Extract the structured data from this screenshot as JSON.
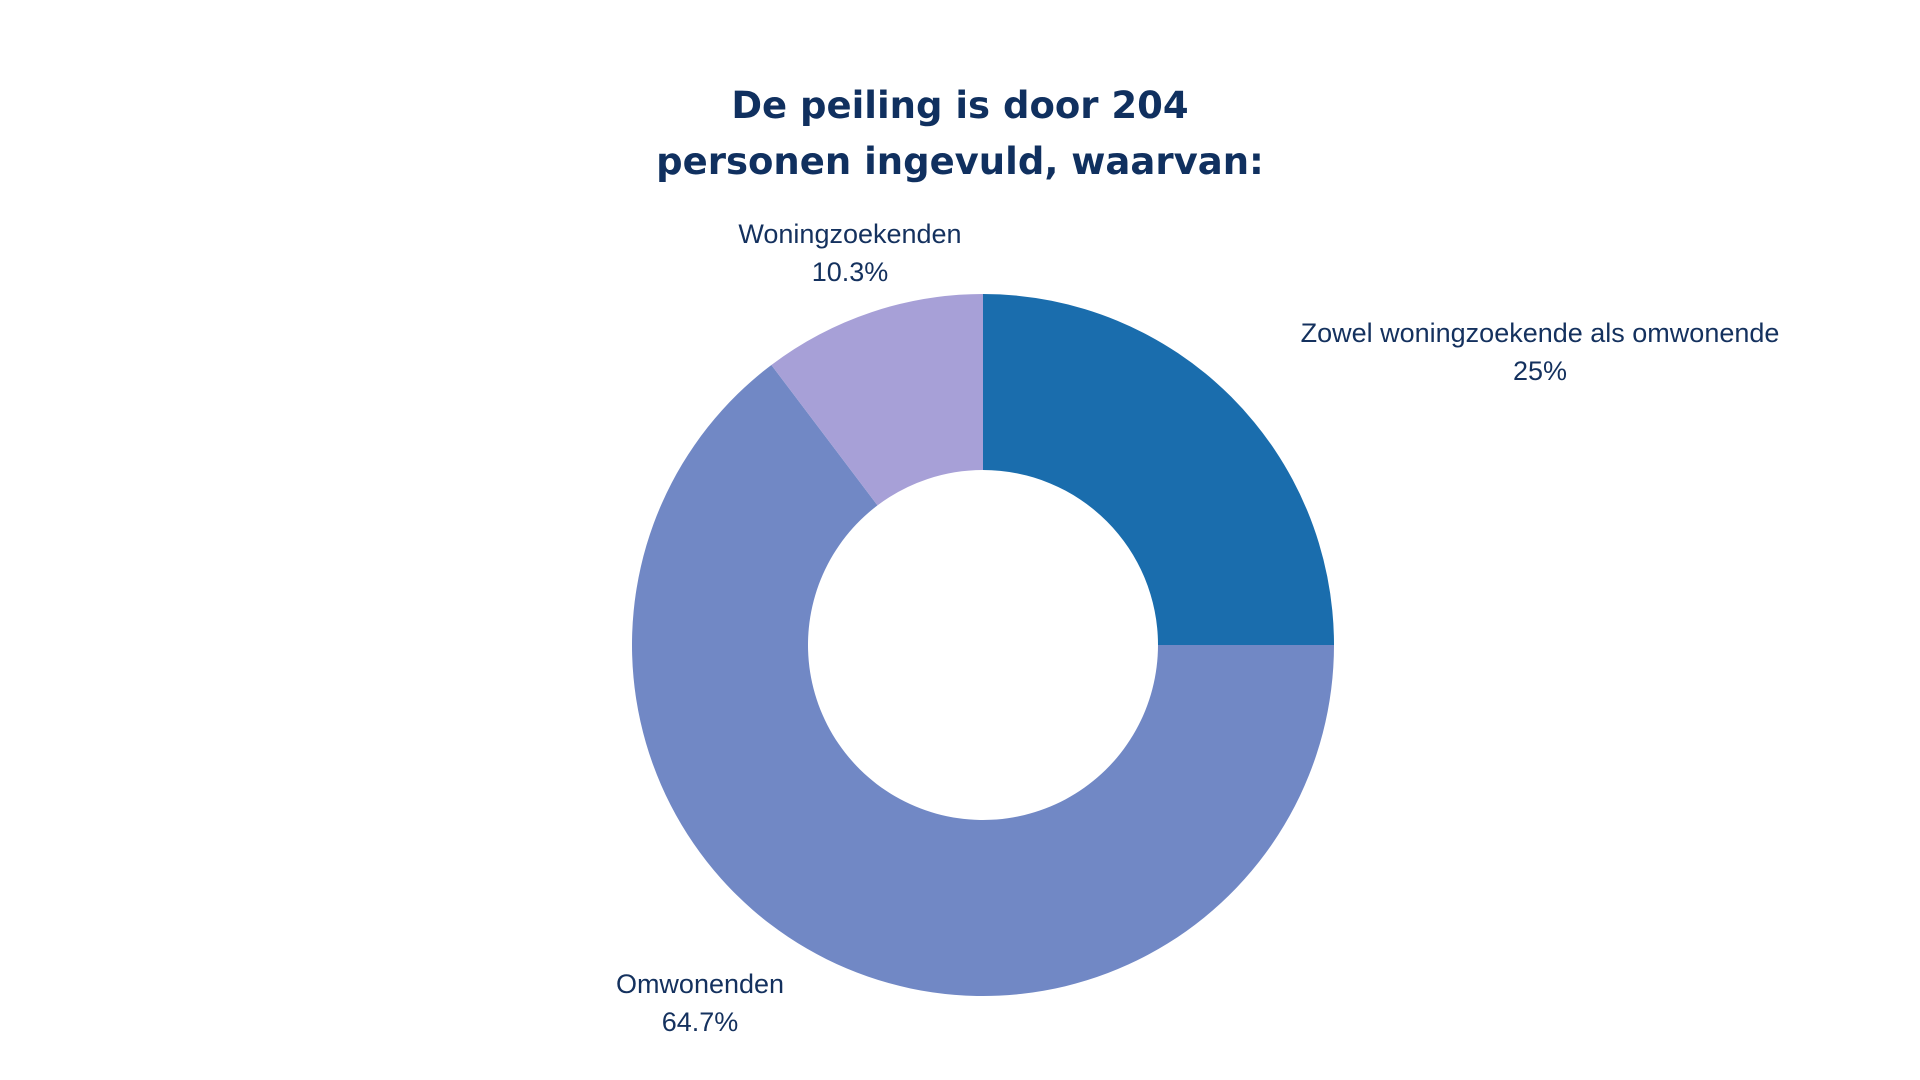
{
  "chart_data": {
    "type": "pie",
    "variant": "donut",
    "title_lines": [
      "De peiling is door 204",
      "personen ingevuld, waarvan:"
    ],
    "slices": [
      {
        "label": "Zowel woningzoekende als omwonende",
        "value": 25,
        "display": "25%",
        "color": "#1a6dad"
      },
      {
        "label": "Omwonenden",
        "value": 64.7,
        "display": "64.7%",
        "color": "#7188c5"
      },
      {
        "label": "Woningzoekenden",
        "value": 10.3,
        "display": "10.3%",
        "color": "#a7a0d7"
      }
    ],
    "start_angle": "12 o'clock",
    "direction": "clockwise",
    "legend": "none"
  }
}
